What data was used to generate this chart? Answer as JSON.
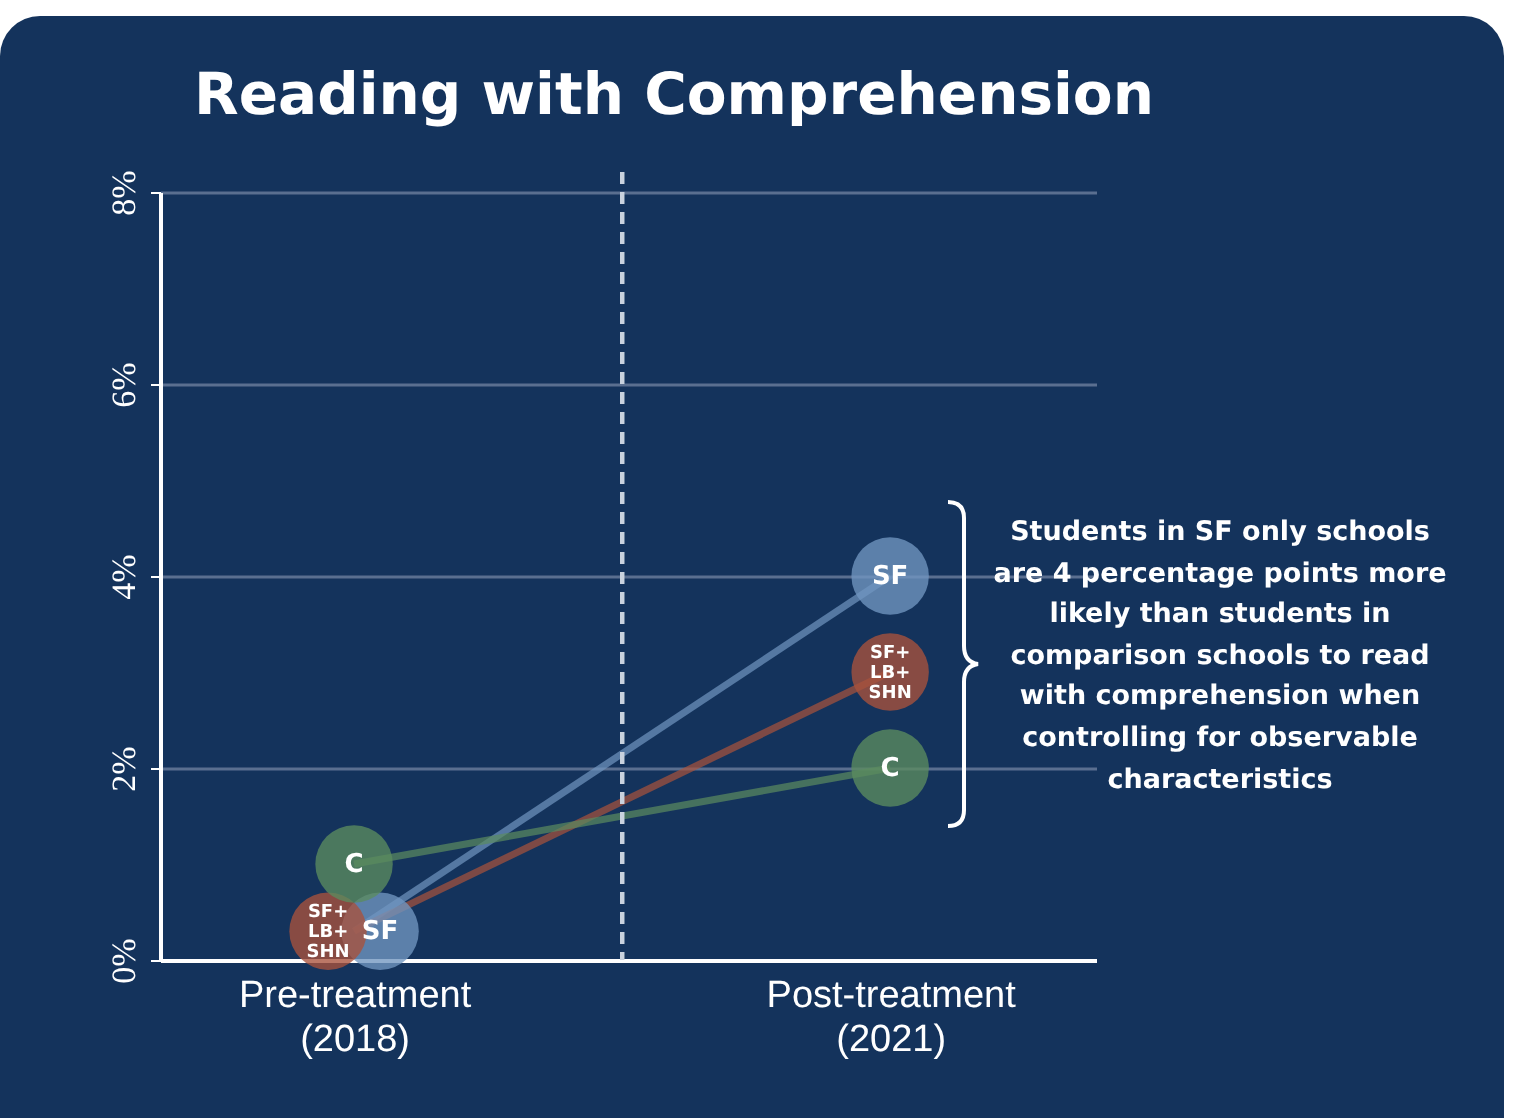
{
  "chart_data": {
    "type": "line",
    "title": "Reading with Comprehension",
    "categories": [
      "Pre-treatment\n(2018)",
      "Post-treatment\n(2021)"
    ],
    "series": [
      {
        "name": "SF",
        "color": "#7196c0",
        "values": [
          0.3,
          4.0
        ]
      },
      {
        "name": "SF+LB+SHN",
        "color": "#a9523c",
        "values": [
          0.3,
          3.0
        ]
      },
      {
        "name": "C",
        "color": "#5b8c5f",
        "values": [
          1.0,
          2.0
        ]
      }
    ],
    "ylim": [
      0,
      8
    ],
    "yticks": [
      {
        "value": 0,
        "label": "0%"
      },
      {
        "value": 2,
        "label": "2%"
      },
      {
        "value": 4,
        "label": "4%"
      },
      {
        "value": 6,
        "label": "6%"
      },
      {
        "value": 8,
        "label": "8%"
      }
    ],
    "grid": "y",
    "legend": false,
    "marker": "circle",
    "annotations": [
      "Students in SF only schools are 4 percentage points more likely than students in comparison schools to read with comprehension when controlling for observable characteristics"
    ]
  }
}
